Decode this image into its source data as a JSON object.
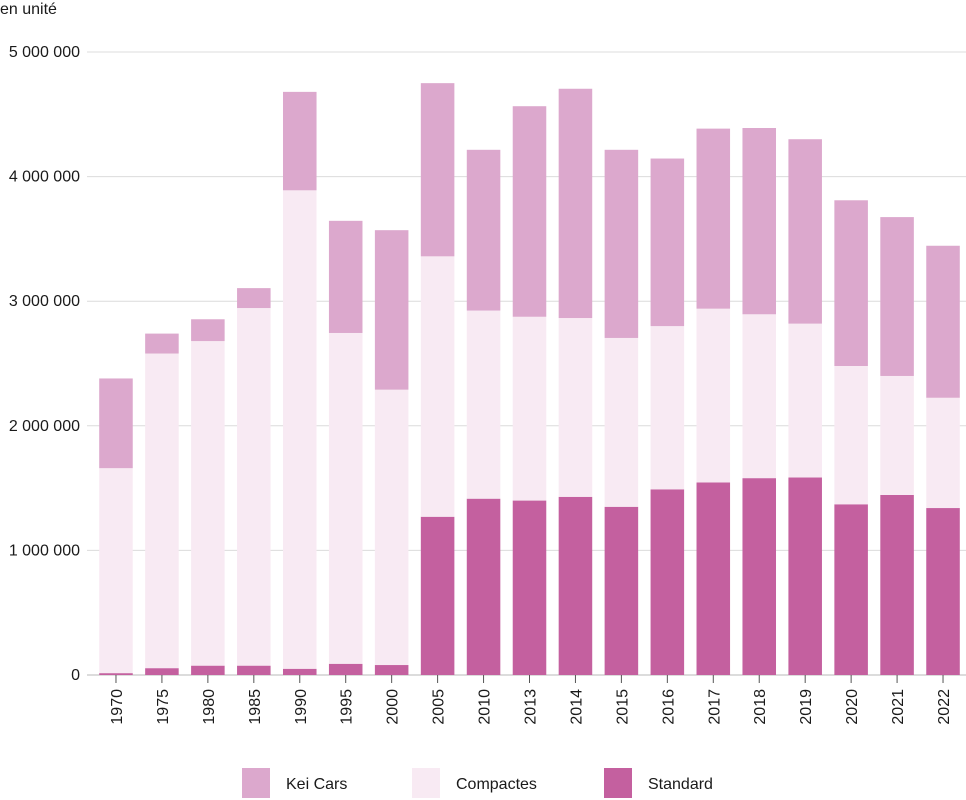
{
  "chart_data": {
    "type": "bar",
    "stacked": true,
    "ylabel": "en unité",
    "ylim": [
      0,
      5000000
    ],
    "yticks": [
      0,
      1000000,
      2000000,
      3000000,
      4000000,
      5000000
    ],
    "ytick_labels": [
      "0",
      "1 000 000",
      "2 000 000",
      "3 000 000",
      "4 000 000",
      "5 000 000"
    ],
    "grid": true,
    "legend_position": "bottom",
    "categories": [
      "1970",
      "1975",
      "1980",
      "1985",
      "1990",
      "1995",
      "2000",
      "2005",
      "2010",
      "2013",
      "2014",
      "2015",
      "2016",
      "2017",
      "2018",
      "2019",
      "2020",
      "2021",
      "2022"
    ],
    "series": [
      {
        "name": "Standard",
        "color": "#c4609f",
        "values": [
          15000,
          55000,
          75000,
          75000,
          50000,
          90000,
          80000,
          1270000,
          1415000,
          1400000,
          1430000,
          1350000,
          1490000,
          1545000,
          1580000,
          1585000,
          1370000,
          1445000,
          1340000
        ]
      },
      {
        "name": "Compactes",
        "color": "#f8eaf3",
        "values": [
          1645000,
          2525000,
          2605000,
          2870000,
          3840000,
          2655000,
          2210000,
          2090000,
          1510000,
          1475000,
          1435000,
          1355000,
          1310000,
          1395000,
          1315000,
          1235000,
          1110000,
          955000,
          885000
        ]
      },
      {
        "name": "Kei Cars",
        "color": "#dca8cd",
        "values": [
          720000,
          160000,
          175000,
          160000,
          790000,
          900000,
          1280000,
          1390000,
          1290000,
          1690000,
          1840000,
          1510000,
          1345000,
          1445000,
          1495000,
          1480000,
          1330000,
          1275000,
          1220000
        ]
      }
    ],
    "legend_order": [
      "Kei Cars",
      "Compactes",
      "Standard"
    ]
  }
}
